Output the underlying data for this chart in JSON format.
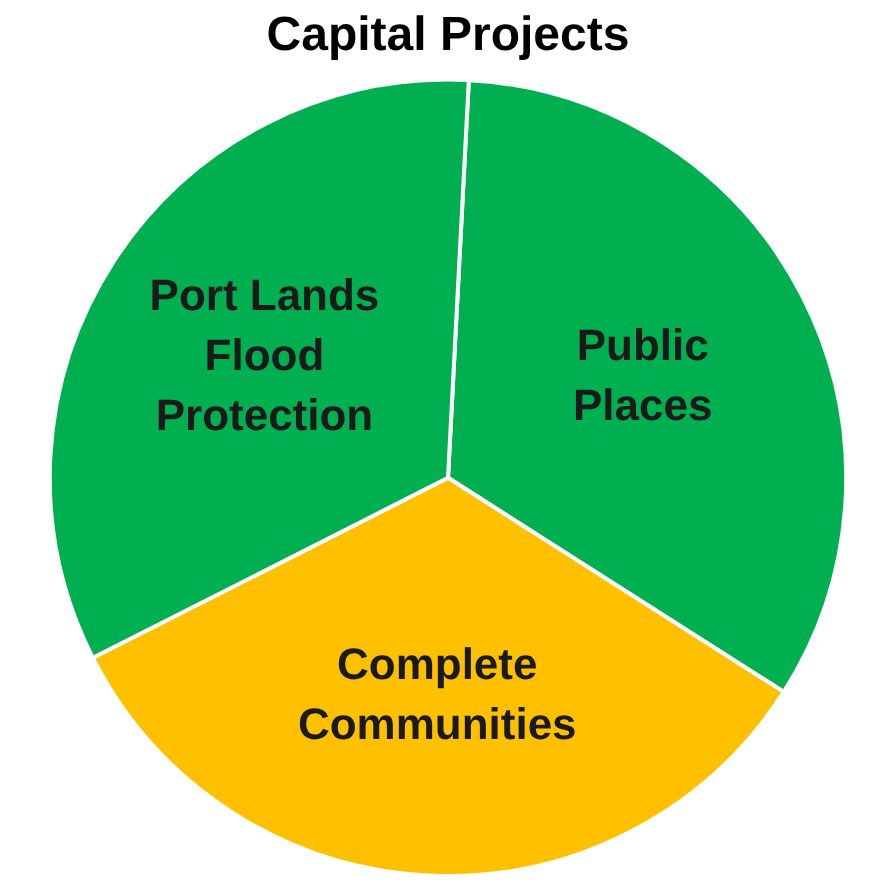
{
  "chart_data": {
    "type": "pie",
    "title": "Capital Projects",
    "categories": [
      "Public Places",
      "Complete Communities",
      "Port Lands Flood Protection"
    ],
    "values": [
      33.2,
      33.5,
      33.3
    ],
    "colors": [
      "#00b050",
      "#ffc000",
      "#00b050"
    ],
    "legend": false
  }
}
